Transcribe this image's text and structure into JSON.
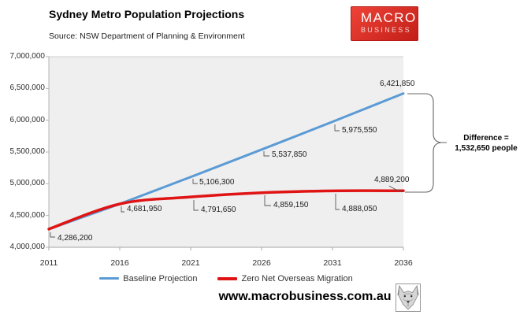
{
  "header": {
    "title": "Sydney Metro Population Projections",
    "subtitle": "Source: NSW Department of Planning & Environment",
    "logo": {
      "line1": "MACRO",
      "line2": "BUSINESS",
      "bg_color": "#d6251d"
    }
  },
  "chart_data": {
    "type": "line",
    "title": "Sydney Metro Population Projections",
    "x_categories": [
      "2011",
      "2016",
      "2021",
      "2026",
      "2031",
      "2036"
    ],
    "y_tick_labels": [
      "4,000,000",
      "4,500,000",
      "5,000,000",
      "5,500,000",
      "6,000,000",
      "6,500,000",
      "7,000,000"
    ],
    "ylim": [
      4000000,
      7000000
    ],
    "ytick_step": 500000,
    "grid": false,
    "legend_position": "bottom",
    "series": [
      {
        "name": "Baseline Projection",
        "color": "#5B9BD5",
        "smooth": false,
        "values": [
          4286200,
          4681950,
          5106300,
          5537850,
          5975550,
          6421850
        ]
      },
      {
        "name": "Zero Net Overseas Migration",
        "color": "#E01414",
        "smooth": true,
        "values": [
          4286200,
          4681950,
          4791650,
          4859150,
          4888050,
          4889200
        ]
      }
    ],
    "point_labels": [
      "4,286,200",
      "4,681,950",
      "5,106,300",
      "4,791,650",
      "5,537,850",
      "4,859,150",
      "5,975,550",
      "4,888,050",
      "6,421,850",
      "4,889,200"
    ],
    "annotation": {
      "line1": "Difference =",
      "line2": "1,532,650 people"
    }
  },
  "footer": {
    "website": "www.macrobusiness.com.au",
    "wolf_icon": "wolf-logo"
  },
  "colors": {
    "baseline": "#5B9BD5",
    "zero_nom": "#E01414",
    "plot_bg": "#efefef",
    "logo_red": "#d6251d"
  }
}
